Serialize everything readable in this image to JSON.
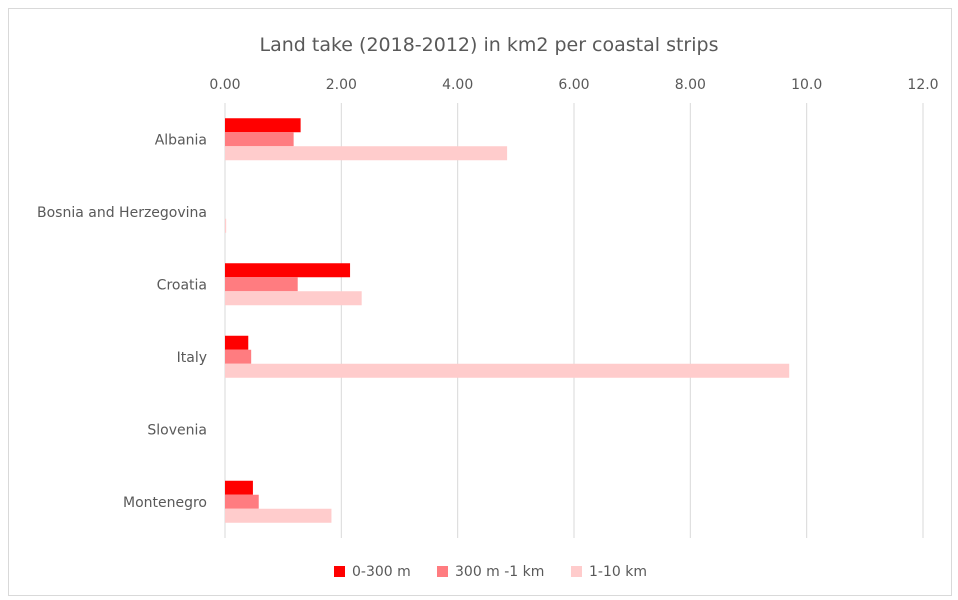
{
  "chart_data": {
    "type": "bar",
    "orientation": "horizontal",
    "title": "Land take (2018-2012) in km2  per coastal strips",
    "categories": [
      "Albania",
      "Bosnia and Herzegovina",
      "Croatia",
      "Italy",
      "Slovenia",
      "Montenegro "
    ],
    "series": [
      {
        "name": "0-300 m",
        "color": "#ff0000",
        "values": [
          1.3,
          0.0,
          2.15,
          0.4,
          0.0,
          0.48
        ]
      },
      {
        "name": "300 m -1 km",
        "color": "#ff7c80",
        "values": [
          1.18,
          0.0,
          1.25,
          0.45,
          0.0,
          0.58
        ]
      },
      {
        "name": "1-10 km",
        "color": "#ffcccc",
        "values": [
          4.85,
          0.02,
          2.35,
          9.7,
          0.0,
          1.83
        ]
      }
    ],
    "x_ticks": [
      "0.00",
      "2.00",
      "4.00",
      "6.00",
      "8.00",
      "10.0",
      "12.0"
    ],
    "xlim": [
      0,
      12
    ],
    "xaxis_position": "top",
    "grid": "vertical",
    "legend_position": "bottom"
  }
}
